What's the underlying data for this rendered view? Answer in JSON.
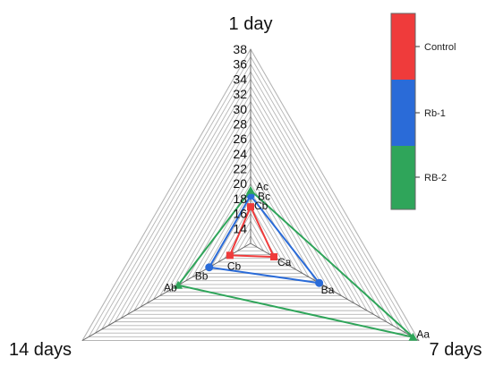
{
  "chart_data": {
    "type": "radar",
    "axes": [
      "1 day",
      "7 days",
      "14 days"
    ],
    "ticks": [
      "14",
      "16",
      "18",
      "20",
      "22",
      "24",
      "26",
      "28",
      "30",
      "32",
      "34",
      "36",
      "38"
    ],
    "range": [
      12,
      38
    ],
    "grid": true,
    "legend_position": "top-right",
    "series": [
      {
        "name": "Control",
        "color": "#ef3b3b",
        "marker": "square",
        "values": [
          16.9,
          15.6,
          15.2
        ],
        "labels": [
          "Cb",
          "Ca",
          "Cb"
        ]
      },
      {
        "name": "Rb-1",
        "color": "#2a6bd8",
        "marker": "circle",
        "values": [
          18.4,
          22.6,
          18.4
        ],
        "labels": [
          "Bc",
          "Ba",
          "Bb"
        ]
      },
      {
        "name": "RB-2",
        "color": "#2fa55a",
        "marker": "triangle",
        "values": [
          19.1,
          37.1,
          23.2
        ],
        "labels": [
          "Ac",
          "Aa",
          "Ab"
        ]
      }
    ]
  }
}
